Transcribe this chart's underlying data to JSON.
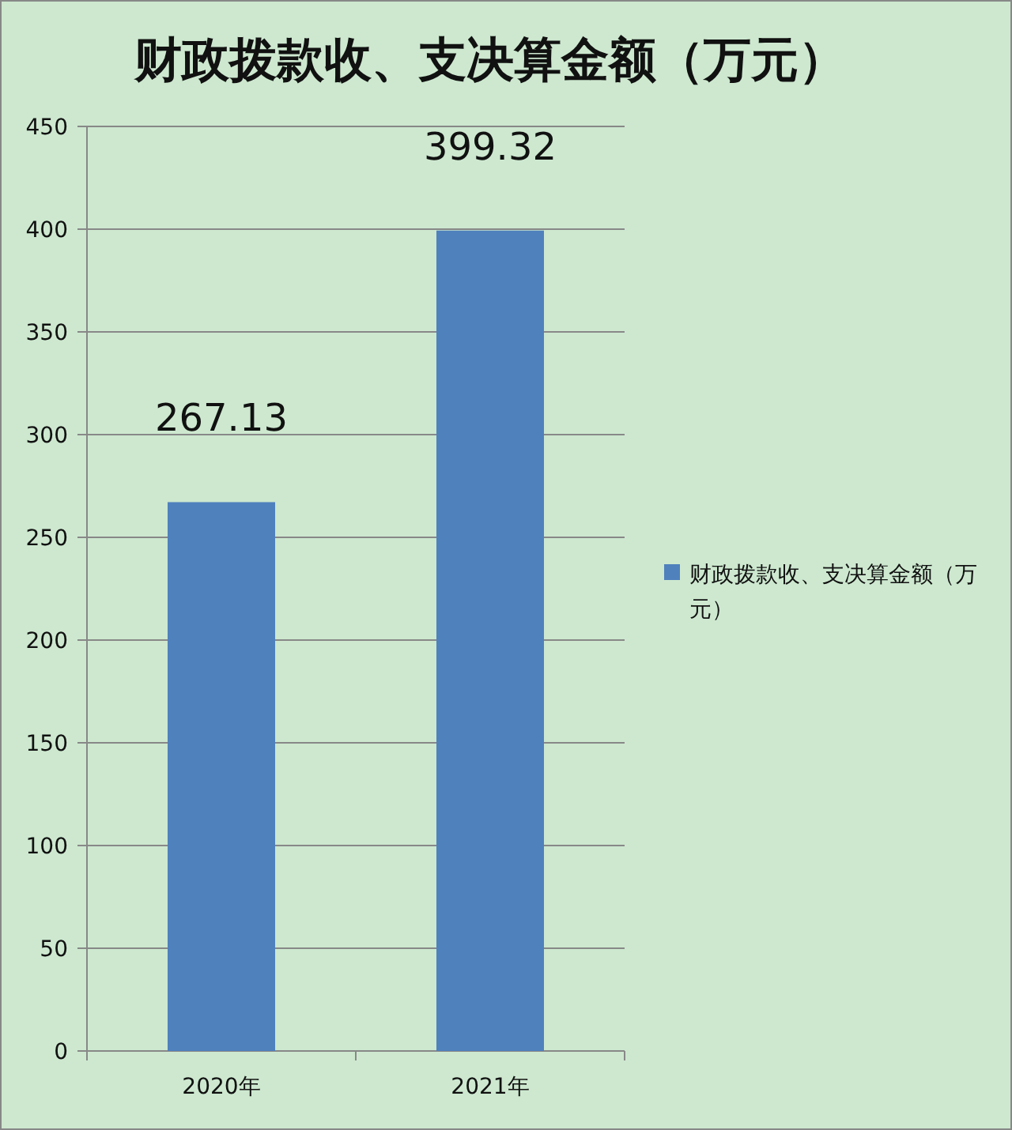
{
  "chart_data": {
    "type": "bar",
    "title": "财政拨款收、支决算金额（万元）",
    "categories": [
      "2020年",
      "2021年"
    ],
    "series": [
      {
        "name": "财政拨款收、支决算金额（万元）",
        "color": "#4f81bd",
        "values": [
          267.13,
          399.32
        ]
      }
    ],
    "ylim": [
      0,
      450
    ],
    "yticks": [
      0,
      50,
      100,
      150,
      200,
      250,
      300,
      350,
      400,
      450
    ],
    "grid": "y",
    "legend": "right",
    "data_labels": true
  }
}
